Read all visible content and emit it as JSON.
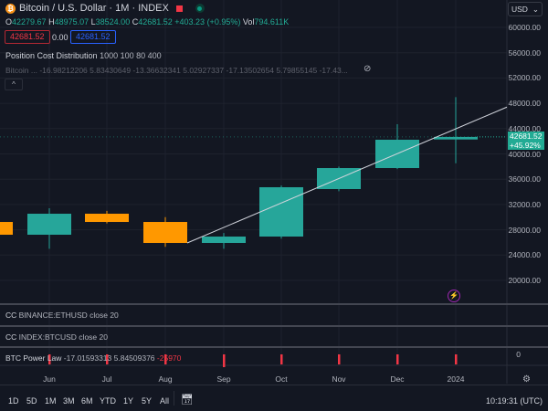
{
  "header": {
    "title": "Bitcoin / U.S. Dollar · 1M · INDEX",
    "coin_icon": "₿",
    "ohlc": {
      "o_label": "O",
      "o": "42279.67",
      "h_label": "H",
      "h": "48975.07",
      "l_label": "L",
      "l": "38524.00",
      "c_label": "C",
      "c": "42681.52",
      "change": "+403.23 (+0.95%)",
      "vol_label": "Vol",
      "vol": "794.611K"
    },
    "sell_price": "42681.52",
    "spread": "0.00",
    "buy_price": "42681.52"
  },
  "indicators": {
    "pcd_name": "Position Cost Distribution",
    "pcd_params": "1000 100 80 400",
    "btc_line": "Bitcoin ... -16.98212206 5.83430649 -13.36632341 5.02927337 -17.13502654 5.79855145 -17.43...",
    "collapse": "^"
  },
  "panes": [
    {
      "name": "CC",
      "params": "BINANCE:ETHUSD close 20"
    },
    {
      "name": "CC",
      "params": "INDEX:BTCUSD close 20"
    },
    {
      "name": "BTC Power Law",
      "params": "-17.01593313 5.84509376",
      "value": "-25970",
      "axis": "0"
    }
  ],
  "price_axis": {
    "currency": "USD",
    "ticks": [
      "60000.00",
      "56000.00",
      "52000.00",
      "48000.00",
      "44000.00",
      "40000.00",
      "36000.00",
      "32000.00",
      "28000.00",
      "24000.00",
      "20000.00"
    ],
    "last_price": "42681.52",
    "last_change": "+45.92%"
  },
  "time_axis": [
    "Jun",
    "Jul",
    "Aug",
    "Sep",
    "Oct",
    "Nov",
    "Dec",
    "2024"
  ],
  "candles": [
    {
      "o": 29240,
      "h": 30000,
      "l": 26500,
      "c": 27220
    },
    {
      "o": 27220,
      "h": 31400,
      "l": 25000,
      "c": 30540
    },
    {
      "o": 30540,
      "h": 31000,
      "l": 29000,
      "c": 29240
    },
    {
      "o": 29240,
      "h": 30000,
      "l": 25300,
      "c": 25920
    },
    {
      "o": 25920,
      "h": 27500,
      "l": 25000,
      "c": 26930
    },
    {
      "o": 26930,
      "h": 35000,
      "l": 26600,
      "c": 34730
    },
    {
      "o": 34440,
      "h": 38000,
      "l": 34100,
      "c": 37760
    },
    {
      "o": 37760,
      "h": 44700,
      "l": 37600,
      "c": 42240
    },
    {
      "o": 42280,
      "h": 48975,
      "l": 38524,
      "c": 42681
    }
  ],
  "trendline": [
    {
      "month": "Aug",
      "price": 25920
    },
    {
      "month": "2024+",
      "price": 47400
    }
  ],
  "bottom": {
    "timeframes": [
      "1D",
      "5D",
      "1M",
      "3M",
      "6M",
      "YTD",
      "1Y",
      "5Y",
      "All"
    ],
    "clock": "10:19:31 (UTC)"
  },
  "colors": {
    "up": "#26a69a",
    "down": "#ff9800",
    "bg": "#131722",
    "accent": "#22ab94"
  }
}
